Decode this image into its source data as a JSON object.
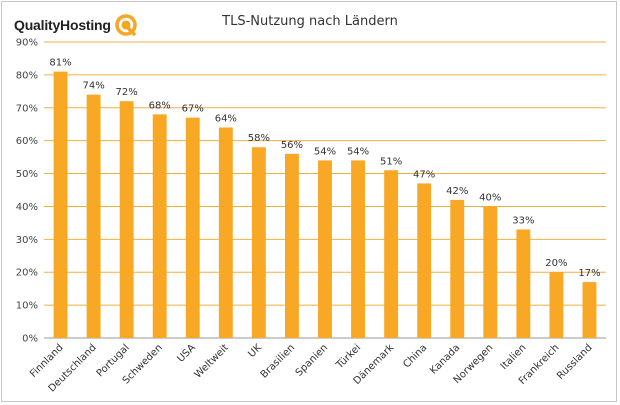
{
  "brand": {
    "name": "QualityHosting",
    "accent": "#f5a623"
  },
  "chart_data": {
    "type": "bar",
    "title": "TLS-Nutzung nach Ländern",
    "categories": [
      "Finnland",
      "Deutschland",
      "Portugal",
      "Schweden",
      "USA",
      "Weltweit",
      "UK",
      "Brasilien",
      "Spanien",
      "Türkei",
      "Dänemark",
      "China",
      "Kanada",
      "Norwegen",
      "Italien",
      "Frankreich",
      "Russland"
    ],
    "values": [
      81,
      74,
      72,
      68,
      67,
      64,
      58,
      56,
      54,
      54,
      51,
      47,
      42,
      40,
      33,
      20,
      17
    ],
    "data_labels": [
      "81%",
      "74%",
      "72%",
      "68%",
      "67%",
      "64%",
      "58%",
      "56%",
      "54%",
      "54%",
      "51%",
      "47%",
      "42%",
      "40%",
      "33%",
      "20%",
      "17%"
    ],
    "yticks": [
      "0%",
      "10%",
      "20%",
      "30%",
      "40%",
      "50%",
      "60%",
      "70%",
      "80%",
      "90%"
    ],
    "ylim": [
      0,
      90
    ],
    "grid": true,
    "bar_color": "#f9a825",
    "grid_color": "#f0b040"
  }
}
